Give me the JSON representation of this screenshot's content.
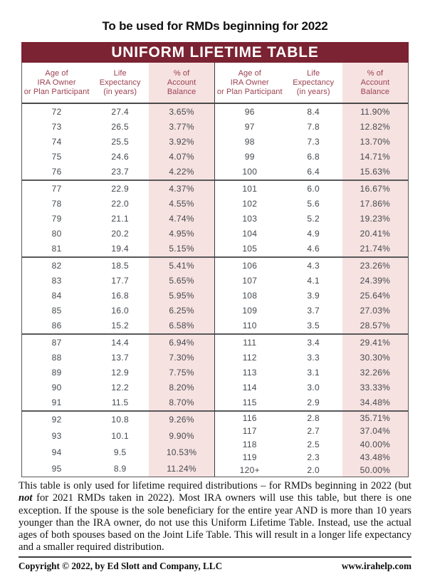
{
  "page": {
    "top_note": "To be used for RMDs beginning for 2022",
    "banner_title": "UNIFORM LIFETIME TABLE"
  },
  "colors": {
    "banner_maroon": "#7b2332",
    "header_text_maroon": "#9c4150",
    "pct_column_pink": "#f6e2e1",
    "data_text_gray": "#45494e"
  },
  "table": {
    "column_headers": {
      "age": [
        "Age of",
        "IRA Owner",
        "or Plan Participant"
      ],
      "life": [
        "Life",
        "Expectancy",
        "(in years)"
      ],
      "pct": [
        "% of",
        "Account",
        "Balance"
      ]
    },
    "left_groups": [
      [
        {
          "age": "72",
          "life": "27.4",
          "pct": "3.65%"
        },
        {
          "age": "73",
          "life": "26.5",
          "pct": "3.77%"
        },
        {
          "age": "74",
          "life": "25.5",
          "pct": "3.92%"
        },
        {
          "age": "75",
          "life": "24.6",
          "pct": "4.07%"
        },
        {
          "age": "76",
          "life": "23.7",
          "pct": "4.22%"
        }
      ],
      [
        {
          "age": "77",
          "life": "22.9",
          "pct": "4.37%"
        },
        {
          "age": "78",
          "life": "22.0",
          "pct": "4.55%"
        },
        {
          "age": "79",
          "life": "21.1",
          "pct": "4.74%"
        },
        {
          "age": "80",
          "life": "20.2",
          "pct": "4.95%"
        },
        {
          "age": "81",
          "life": "19.4",
          "pct": "5.15%"
        }
      ],
      [
        {
          "age": "82",
          "life": "18.5",
          "pct": "5.41%"
        },
        {
          "age": "83",
          "life": "17.7",
          "pct": "5.65%"
        },
        {
          "age": "84",
          "life": "16.8",
          "pct": "5.95%"
        },
        {
          "age": "85",
          "life": "16.0",
          "pct": "6.25%"
        },
        {
          "age": "86",
          "life": "15.2",
          "pct": "6.58%"
        }
      ],
      [
        {
          "age": "87",
          "life": "14.4",
          "pct": "6.94%"
        },
        {
          "age": "88",
          "life": "13.7",
          "pct": "7.30%"
        },
        {
          "age": "89",
          "life": "12.9",
          "pct": "7.75%"
        },
        {
          "age": "90",
          "life": "12.2",
          "pct": "8.20%"
        },
        {
          "age": "91",
          "life": "11.5",
          "pct": "8.70%"
        }
      ],
      [
        {
          "age": "92",
          "life": "10.8",
          "pct": "9.26%"
        },
        {
          "age": "93",
          "life": "10.1",
          "pct": "9.90%"
        },
        {
          "age": "94",
          "life": "9.5",
          "pct": "10.53%"
        },
        {
          "age": "95",
          "life": "8.9",
          "pct": "11.24%"
        }
      ]
    ],
    "right_groups": [
      [
        {
          "age": "96",
          "life": "8.4",
          "pct": "11.90%"
        },
        {
          "age": "97",
          "life": "7.8",
          "pct": "12.82%"
        },
        {
          "age": "98",
          "life": "7.3",
          "pct": "13.70%"
        },
        {
          "age": "99",
          "life": "6.8",
          "pct": "14.71%"
        },
        {
          "age": "100",
          "life": "6.4",
          "pct": "15.63%"
        }
      ],
      [
        {
          "age": "101",
          "life": "6.0",
          "pct": "16.67%"
        },
        {
          "age": "102",
          "life": "5.6",
          "pct": "17.86%"
        },
        {
          "age": "103",
          "life": "5.2",
          "pct": "19.23%"
        },
        {
          "age": "104",
          "life": "4.9",
          "pct": "20.41%"
        },
        {
          "age": "105",
          "life": "4.6",
          "pct": "21.74%"
        }
      ],
      [
        {
          "age": "106",
          "life": "4.3",
          "pct": "23.26%"
        },
        {
          "age": "107",
          "life": "4.1",
          "pct": "24.39%"
        },
        {
          "age": "108",
          "life": "3.9",
          "pct": "25.64%"
        },
        {
          "age": "109",
          "life": "3.7",
          "pct": "27.03%"
        },
        {
          "age": "110",
          "life": "3.5",
          "pct": "28.57%"
        }
      ],
      [
        {
          "age": "111",
          "life": "3.4",
          "pct": "29.41%"
        },
        {
          "age": "112",
          "life": "3.3",
          "pct": "30.30%"
        },
        {
          "age": "113",
          "life": "3.1",
          "pct": "32.26%"
        },
        {
          "age": "114",
          "life": "3.0",
          "pct": "33.33%"
        },
        {
          "age": "115",
          "life": "2.9",
          "pct": "34.48%"
        }
      ],
      [
        {
          "age": "116",
          "life": "2.8",
          "pct": "35.71%"
        },
        {
          "age": "117",
          "life": "2.7",
          "pct": "37.04%"
        },
        {
          "age": "118",
          "life": "2.5",
          "pct": "40.00%"
        },
        {
          "age": "119",
          "life": "2.3",
          "pct": "43.48%"
        },
        {
          "age": "120+",
          "life": "2.0",
          "pct": "50.00%"
        }
      ]
    ]
  },
  "footnote": {
    "part1": "This table is only used for lifetime required distributions – for RMDs beginning in 2022 (but ",
    "not_word": "not",
    "part2": " for 2021 RMDs taken in 2022). Most IRA owners will use this table, but there is one exception. If the spouse is the sole beneficiary for the entire year AND is more than 10 years younger than the IRA owner, do not use this Uniform Lifetime Table. Instead, use the actual ages of both spouses based on the Joint Life Table. This will result in a longer life expectancy and a smaller required distribution."
  },
  "footer": {
    "copyright": "Copyright © 2022, by Ed Slott and Company, LLC",
    "website": "www.irahelp.com"
  }
}
